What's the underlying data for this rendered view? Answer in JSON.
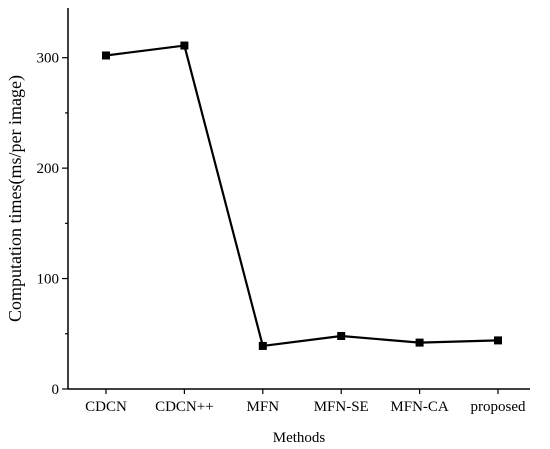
{
  "chart_data": {
    "type": "line",
    "title": "",
    "xlabel": "Methods",
    "ylabel": "Computation times(ms/per image)",
    "categories": [
      "CDCN",
      "CDCN++",
      "MFN",
      "MFN-SE",
      "MFN-CA",
      "proposed"
    ],
    "series": [
      {
        "values": [
          302,
          311,
          39,
          48,
          42,
          44
        ],
        "color": "#000000",
        "marker": "square"
      }
    ],
    "ylim": [
      0,
      345
    ],
    "yticks": [
      0,
      100,
      200,
      300
    ],
    "grid": false,
    "legend": "none"
  }
}
